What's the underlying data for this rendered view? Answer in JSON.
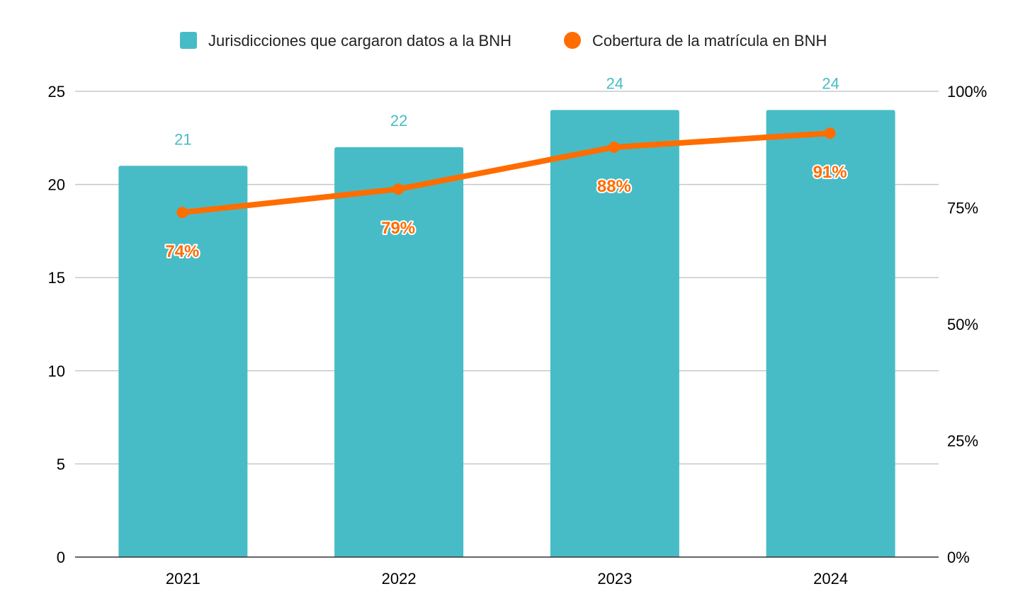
{
  "chart_data": {
    "type": "bar",
    "categories": [
      "2021",
      "2022",
      "2023",
      "2024"
    ],
    "series": [
      {
        "name": "Jurisdicciones que cargaron datos a la BNH",
        "type": "bar",
        "axis": "left",
        "values": [
          21,
          22,
          24,
          24
        ],
        "labels": [
          "21",
          "22",
          "24",
          "24"
        ],
        "color": "#47BCC6"
      },
      {
        "name": "Cobertura de la matrícula en BNH",
        "type": "line",
        "axis": "right",
        "values": [
          0.74,
          0.79,
          0.88,
          0.91
        ],
        "labels": [
          "74%",
          "79%",
          "88%",
          "91%"
        ],
        "color": "#FF6D01"
      }
    ],
    "y_left": {
      "lim": [
        0,
        25
      ],
      "ticks": [
        0,
        5,
        10,
        15,
        20,
        25
      ],
      "tick_labels": [
        "0",
        "5",
        "10",
        "15",
        "20",
        "25"
      ]
    },
    "y_right": {
      "lim": [
        0,
        1
      ],
      "ticks": [
        0,
        0.25,
        0.5,
        0.75,
        1.0
      ],
      "tick_labels": [
        "0%",
        "25%",
        "50%",
        "75%",
        "100%"
      ]
    },
    "grid": true,
    "legend_position": "top-center",
    "title": "",
    "xlabel": "",
    "ylabel": ""
  }
}
